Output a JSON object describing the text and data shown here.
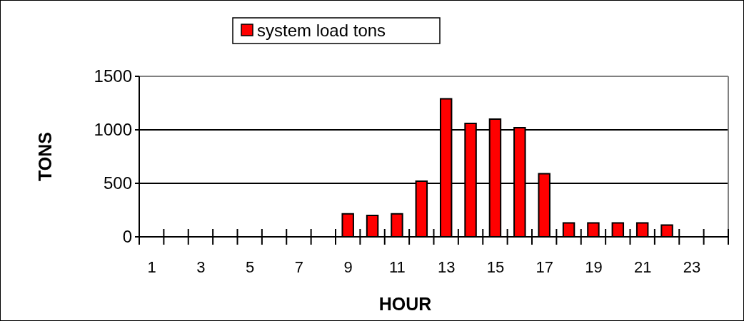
{
  "chart_data": {
    "type": "bar",
    "xlabel": "HOUR",
    "ylabel": "TONS",
    "x": [
      1,
      2,
      3,
      4,
      5,
      6,
      7,
      8,
      9,
      10,
      11,
      12,
      13,
      14,
      15,
      16,
      17,
      18,
      19,
      20,
      21,
      22,
      23,
      24
    ],
    "xlim": [
      0.5,
      24.5
    ],
    "xticks": [
      1,
      3,
      5,
      7,
      9,
      11,
      13,
      15,
      17,
      19,
      21,
      23
    ],
    "series": [
      {
        "name": "system load tons",
        "color": "#ff0000",
        "values": [
          0,
          0,
          0,
          0,
          0,
          0,
          0,
          0,
          215,
          200,
          215,
          520,
          1290,
          1060,
          1100,
          1020,
          590,
          130,
          130,
          130,
          130,
          110,
          0,
          0
        ]
      }
    ],
    "ylim": [
      0,
      1500
    ],
    "yticks": [
      0,
      500,
      1000,
      1500
    ],
    "grid": "y",
    "legend": "top"
  }
}
